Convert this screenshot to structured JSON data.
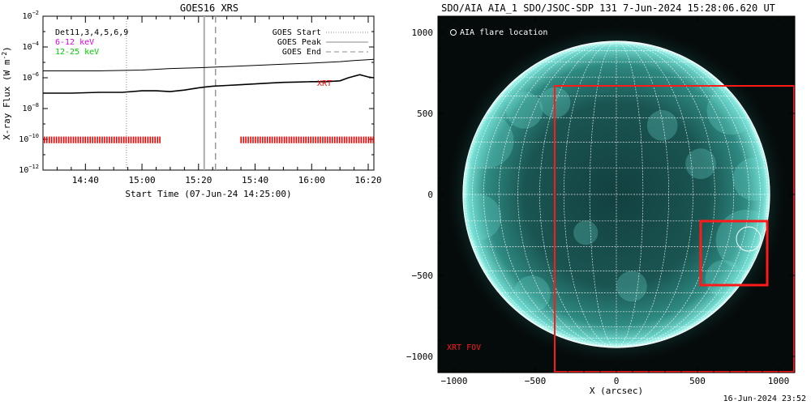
{
  "chart_data": [
    {
      "type": "line",
      "title": "GOES16 XRS",
      "xlabel": "Start Time (07-Jun-24 14:25:00)",
      "ylabel_main": "X-ray Flux (W m",
      "ylabel_sup": "-2",
      "ylabel_close": ")",
      "y_scale": "log",
      "ylim_exponents": [
        -12,
        -2
      ],
      "y_tick_exponents": [
        -12,
        -10,
        -8,
        -6,
        -4,
        -2
      ],
      "x_range_minutes": [
        0,
        117
      ],
      "x_ticks": [
        {
          "label": "14:40",
          "minute": 15
        },
        {
          "label": "15:00",
          "minute": 35
        },
        {
          "label": "15:20",
          "minute": 55
        },
        {
          "label": "15:40",
          "minute": 75
        },
        {
          "label": "16:00",
          "minute": 95
        },
        {
          "label": "16:20",
          "minute": 115
        }
      ],
      "legend_left": {
        "detectors": "Det11,3,4,5,6,9",
        "band_low": "6-12 keV",
        "band_high": "12-25 keV"
      },
      "legend_right": [
        {
          "label": "GOES Start",
          "style": "dotted",
          "minute": 29.5
        },
        {
          "label": "GOES Peak",
          "style": "solid",
          "minute": 57
        },
        {
          "label": "GOES End",
          "style": "dashed",
          "minute": 61
        }
      ],
      "xrt_label": "XRT",
      "series": [
        {
          "name": "upper channel",
          "minutes": [
            0,
            20,
            35,
            45,
            55,
            65,
            75,
            85,
            95,
            105,
            110,
            117
          ],
          "log_flux": [
            -5.55,
            -5.55,
            -5.5,
            -5.4,
            -5.35,
            -5.28,
            -5.2,
            -5.12,
            -5.05,
            -4.95,
            -4.88,
            -4.8
          ]
        },
        {
          "name": "lower channel",
          "minutes": [
            0,
            10,
            20,
            28,
            35,
            40,
            45,
            50,
            55,
            60,
            65,
            70,
            75,
            80,
            85,
            90,
            95,
            100,
            105,
            108,
            112,
            115,
            117
          ],
          "log_flux": [
            -7.0,
            -7.0,
            -6.95,
            -6.95,
            -6.85,
            -6.85,
            -6.9,
            -6.8,
            -6.65,
            -6.55,
            -6.5,
            -6.45,
            -6.4,
            -6.35,
            -6.3,
            -6.28,
            -6.25,
            -6.25,
            -6.2,
            -6.0,
            -5.8,
            -5.95,
            -6.0
          ]
        }
      ],
      "xrt_observation_segments": [
        [
          0,
          41.5
        ],
        [
          69.5,
          117
        ]
      ],
      "colors": {
        "band_low": "#dd00dd",
        "band_high": "#00cc00",
        "xrt": "#ff0000",
        "peak_line": "#aaaaaa"
      }
    },
    {
      "type": "image",
      "title": "SDO/AIA AIA_1 SDO/JSOC-SDP 131  7-Jun-2024 15:28:06.620 UT",
      "xlabel": "X (arcsec)",
      "x_range": [
        -1100,
        1100
      ],
      "y_range": [
        -1100,
        1100
      ],
      "x_ticks": [
        -1000,
        -500,
        0,
        500,
        1000
      ],
      "y_ticks": [
        -1000,
        -500,
        0,
        500,
        1000
      ],
      "x_tick_labels": [
        "−1000",
        "−500",
        "0",
        "500",
        "1000"
      ],
      "y_tick_labels": [
        "1000",
        "500",
        "0",
        "−500",
        "−1000"
      ],
      "solar_radius_arcsec": 945,
      "grid_step_degrees": 10,
      "flare_marker_label": "AIA flare location",
      "flare_location": {
        "x": 815,
        "y": -275,
        "radius": 75
      },
      "xrt_fov_label": "XRT FOV",
      "xrt_fov": {
        "x": [
          -380,
          1100
        ],
        "y": [
          -1100,
          670
        ]
      },
      "inner_box": {
        "x": [
          520,
          930
        ],
        "y": [
          -560,
          -165
        ]
      },
      "colors": {
        "sun_core": "#0f3d3c",
        "limb": "#b8fff8",
        "xrt": "#ff1a1a"
      }
    }
  ],
  "footer": {
    "timestamp": "16-Jun-2024 23:52"
  }
}
